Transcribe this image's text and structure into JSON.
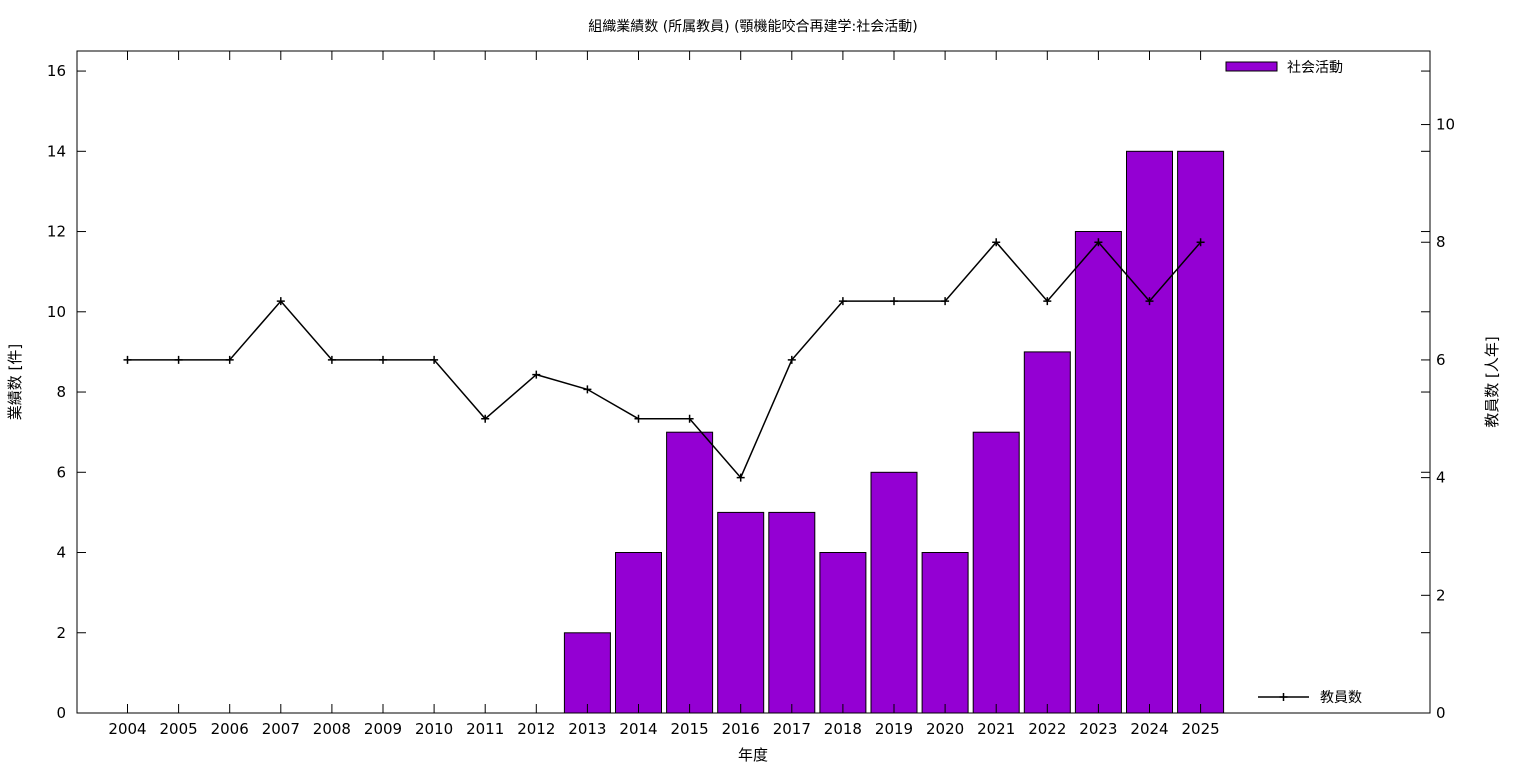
{
  "chart_data": {
    "type": "bar",
    "title": "組織業績数 (所属教員) (顎機能咬合再建学:社会活動)",
    "xlabel": "年度",
    "ylabel_left": "業績数 [件]",
    "ylabel_right": "教員数 [人年]",
    "ylim_left": [
      0,
      16.5
    ],
    "ylim_right": [
      0,
      11.25
    ],
    "yticks_left": [
      0,
      2,
      4,
      6,
      8,
      10,
      12,
      14,
      16
    ],
    "yticks_right": [
      0,
      2,
      4,
      6,
      8,
      10
    ],
    "grid": false,
    "categories": [
      "2004",
      "2005",
      "2006",
      "2007",
      "2008",
      "2009",
      "2010",
      "2011",
      "2012",
      "2013",
      "2014",
      "2015",
      "2016",
      "2017",
      "2018",
      "2019",
      "2020",
      "2021",
      "2022",
      "2023",
      "2024",
      "2025"
    ],
    "series": [
      {
        "name": "社会活動",
        "type": "bar",
        "axis": "left",
        "color": "#9400d3",
        "values": [
          0,
          0,
          0,
          0,
          0,
          0,
          0,
          0,
          0,
          2,
          4,
          7,
          5,
          5,
          4,
          6,
          4,
          7,
          9,
          12,
          14,
          14
        ]
      },
      {
        "name": "教員数",
        "type": "line",
        "axis": "right",
        "color": "#000000",
        "values": [
          6,
          6,
          6,
          7,
          6,
          6,
          6,
          5,
          5.75,
          5.5,
          5,
          5,
          4,
          6,
          7,
          7,
          7,
          8,
          7,
          8,
          7,
          8
        ]
      }
    ],
    "legend": {
      "bar_position": "top-right",
      "line_position": "bottom-right"
    }
  }
}
